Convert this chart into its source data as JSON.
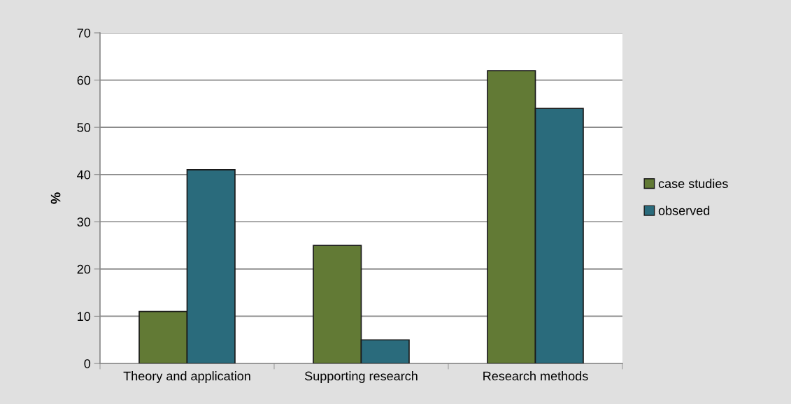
{
  "chart_data": {
    "type": "bar",
    "ylabel": "%",
    "categories": [
      "Theory and application",
      "Supporting research",
      "Research methods"
    ],
    "series": [
      {
        "name": "case studies",
        "color": "#627a35",
        "values": [
          11,
          25,
          62
        ]
      },
      {
        "name": "observed",
        "color": "#2a6b7c",
        "values": [
          41,
          5,
          54
        ]
      }
    ],
    "ylim": [
      0,
      70
    ],
    "yticks": [
      0,
      10,
      20,
      30,
      40,
      50,
      60,
      70
    ],
    "grid": "y",
    "legend": "right"
  }
}
